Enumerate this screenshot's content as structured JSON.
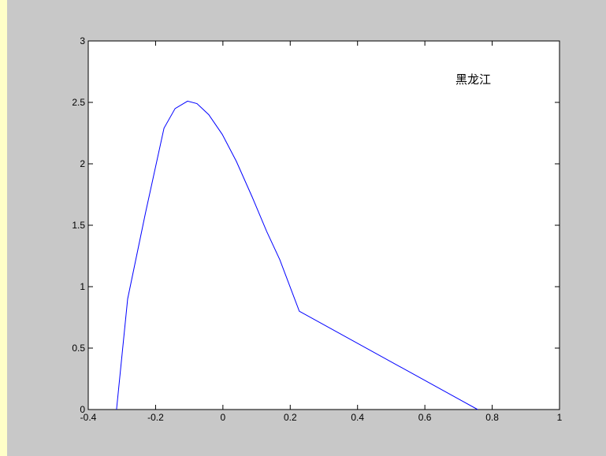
{
  "chart_data": {
    "type": "line",
    "annotations": [
      "黑龙江"
    ],
    "series": [
      {
        "color": "#0000ff",
        "x": [
          -0.316,
          -0.283,
          -0.23,
          -0.175,
          -0.142,
          -0.105,
          -0.077,
          -0.042,
          -0.002,
          0.04,
          0.087,
          0.13,
          0.169,
          0.227,
          0.757
        ],
        "values": [
          0,
          0.9,
          1.6,
          2.29,
          2.45,
          2.51,
          2.49,
          2.4,
          2.24,
          2.02,
          1.73,
          1.45,
          1.22,
          0.8,
          0
        ]
      }
    ],
    "xlim": [
      -0.4,
      1
    ],
    "xticks": [
      -0.4,
      -0.2,
      0,
      0.2,
      0.4,
      0.6,
      0.8,
      1
    ],
    "ylim": [
      0,
      3
    ],
    "yticks": [
      0,
      0.5,
      1,
      1.5,
      2,
      2.5,
      3
    ]
  }
}
